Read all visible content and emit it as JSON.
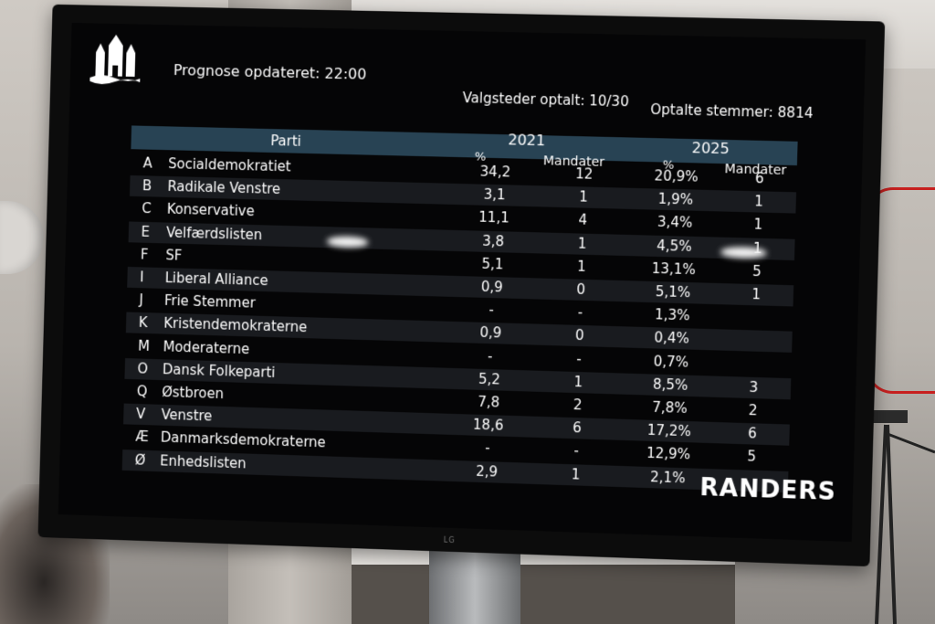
{
  "header": {
    "prognose": "Prognose opdateret: 22:00",
    "valgsteder": "Valgsteder optalt: 10/30",
    "stemmer": "Optalte stemmer: 8814"
  },
  "table": {
    "col_parti": "Parti",
    "year_1": "2021",
    "year_2": "2025",
    "col_pct_1": "%",
    "col_mandater_1": "Mandater",
    "col_pct_2": "%",
    "col_mandater_2": "Mandater",
    "rows": [
      {
        "letter": "A",
        "name": "Socialdemokratiet",
        "pct2021": "34,2",
        "m2021": "12",
        "pct2025": "20,9%",
        "m2025": "6"
      },
      {
        "letter": "B",
        "name": "Radikale Venstre",
        "pct2021": "3,1",
        "m2021": "1",
        "pct2025": "1,9%",
        "m2025": "1"
      },
      {
        "letter": "C",
        "name": "Konservative",
        "pct2021": "11,1",
        "m2021": "4",
        "pct2025": "3,4%",
        "m2025": "1"
      },
      {
        "letter": "E",
        "name": "Velfærdslisten",
        "pct2021": "3,8",
        "m2021": "1",
        "pct2025": "4,5%",
        "m2025": "1"
      },
      {
        "letter": "F",
        "name": "SF",
        "pct2021": "5,1",
        "m2021": "1",
        "pct2025": "13,1%",
        "m2025": "5"
      },
      {
        "letter": "I",
        "name": "Liberal Alliance",
        "pct2021": "0,9",
        "m2021": "0",
        "pct2025": "5,1%",
        "m2025": "1"
      },
      {
        "letter": "J",
        "name": "Frie Stemmer",
        "pct2021": "-",
        "m2021": "-",
        "pct2025": "1,3%",
        "m2025": ""
      },
      {
        "letter": "K",
        "name": "Kristendemokraterne",
        "pct2021": "0,9",
        "m2021": "0",
        "pct2025": "0,4%",
        "m2025": ""
      },
      {
        "letter": "M",
        "name": "Moderaterne",
        "pct2021": "-",
        "m2021": "-",
        "pct2025": "0,7%",
        "m2025": ""
      },
      {
        "letter": "O",
        "name": "Dansk Folkeparti",
        "pct2021": "5,2",
        "m2021": "1",
        "pct2025": "8,5%",
        "m2025": "3"
      },
      {
        "letter": "Q",
        "name": "Østbroen",
        "pct2021": "7,8",
        "m2021": "2",
        "pct2025": "7,8%",
        "m2025": "2"
      },
      {
        "letter": "V",
        "name": "Venstre",
        "pct2021": "18,6",
        "m2021": "6",
        "pct2025": "17,2%",
        "m2025": "6"
      },
      {
        "letter": "Æ",
        "name": "Danmarksdemokraterne",
        "pct2021": "-",
        "m2021": "-",
        "pct2025": "12,9%",
        "m2025": "5"
      },
      {
        "letter": "Ø",
        "name": "Enhedslisten",
        "pct2021": "2,9",
        "m2021": "1",
        "pct2025": "2,1%",
        "m2025": ""
      }
    ]
  },
  "brand": "RANDERS",
  "tv_brand": "LG",
  "colors": {
    "header_bar": "#284354",
    "screen_bg": "#050506",
    "text": "#ffffff"
  }
}
